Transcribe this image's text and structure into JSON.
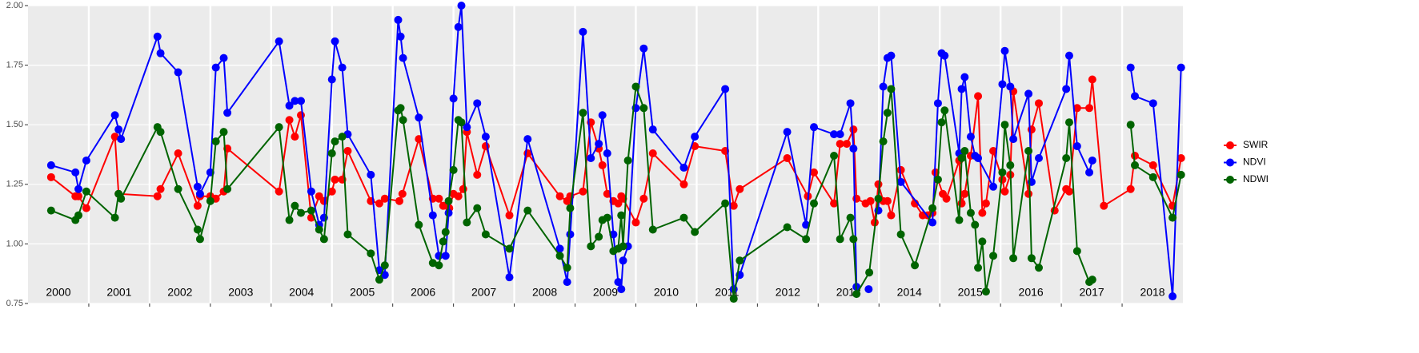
{
  "chart_data": {
    "type": "line",
    "xlim": [
      2000,
      2019
    ],
    "xticks": [
      2001,
      2002,
      2003,
      2004,
      2005,
      2006,
      2007,
      2008,
      2009,
      2010,
      2011,
      2012,
      2013,
      2014,
      2015,
      2016,
      2017,
      2018
    ],
    "year_labels": [
      "2000",
      "2001",
      "2002",
      "2003",
      "2004",
      "2005",
      "2006",
      "2007",
      "2008",
      "2009",
      "2010",
      "2011",
      "2012",
      "2013",
      "2014",
      "2015",
      "2016",
      "2017",
      "2018"
    ],
    "ylim": [
      0.75,
      2.0
    ],
    "yticks": [
      0.75,
      {
        "value": 1.0,
        "label": "1.00"
      },
      1.25,
      {
        "value": 1.5,
        "label": "1.50"
      },
      1.75,
      {
        "value": 2.0,
        "label": "2.00"
      }
    ],
    "grid": true,
    "legend": "right",
    "series": [
      {
        "name": "SWIR",
        "color": "#ff0000",
        "x": [
          2000.38,
          2000.78,
          2000.83,
          2000.96,
          2001.43,
          2001.49,
          2002.13,
          2002.18,
          2002.47,
          2002.79,
          2002.83,
          2003.0,
          2003.09,
          2003.22,
          2003.28,
          2004.13,
          2004.3,
          2004.39,
          2004.49,
          2004.66,
          2004.79,
          2004.87,
          2005.0,
          2005.05,
          2005.17,
          2005.26,
          2005.64,
          2005.78,
          2005.87,
          2006.11,
          2006.16,
          2006.43,
          2006.66,
          2006.76,
          2006.83,
          2006.93,
          2007.0,
          2007.08,
          2007.16,
          2007.22,
          2007.39,
          2007.53,
          2007.92,
          2008.22,
          2008.75,
          2008.87,
          2008.92,
          2009.13,
          2009.26,
          2009.39,
          2009.45,
          2009.53,
          2009.63,
          2009.71,
          2009.76,
          2009.79,
          2010.0,
          2010.13,
          2010.28,
          2010.79,
          2010.97,
          2011.47,
          2011.61,
          2011.71,
          2012.49,
          2012.83,
          2012.93,
          2013.26,
          2013.36,
          2013.47,
          2013.58,
          2013.63,
          2013.78,
          2013.86,
          2013.93,
          2013.99,
          2014.07,
          2014.14,
          2014.2,
          2014.36,
          2014.59,
          2014.72,
          2014.8,
          2014.88,
          2014.93,
          2015.05,
          2015.11,
          2015.32,
          2015.36,
          2015.41,
          2015.51,
          2015.63,
          2015.7,
          2015.76,
          2015.88,
          2016.03,
          2016.07,
          2016.16,
          2016.21,
          2016.46,
          2016.51,
          2016.63,
          2016.89,
          2017.08,
          2017.13,
          2017.26,
          2017.46,
          2017.51,
          2017.7,
          2018.14,
          2018.21,
          2018.51,
          2018.83,
          2018.97
        ],
        "values": [
          1.28,
          1.2,
          1.2,
          1.15,
          1.45,
          1.21,
          1.2,
          1.23,
          1.38,
          1.16,
          1.2,
          1.2,
          1.19,
          1.22,
          1.4,
          1.22,
          1.52,
          1.45,
          1.54,
          1.11,
          1.2,
          1.18,
          1.22,
          1.27,
          1.27,
          1.39,
          1.18,
          1.17,
          1.19,
          1.18,
          1.21,
          1.44,
          1.19,
          1.19,
          1.16,
          1.15,
          1.21,
          1.2,
          1.23,
          1.47,
          1.29,
          1.41,
          1.12,
          1.38,
          1.2,
          1.18,
          1.2,
          1.22,
          1.51,
          1.4,
          1.33,
          1.21,
          1.18,
          1.17,
          1.2,
          1.19,
          1.09,
          1.19,
          1.38,
          1.25,
          1.41,
          1.39,
          1.16,
          1.23,
          1.36,
          1.2,
          1.3,
          1.17,
          1.42,
          1.42,
          1.48,
          1.19,
          1.17,
          1.18,
          1.09,
          1.25,
          1.18,
          1.18,
          1.12,
          1.31,
          1.17,
          1.12,
          1.12,
          1.13,
          1.3,
          1.21,
          1.19,
          1.35,
          1.17,
          1.21,
          1.37,
          1.62,
          1.13,
          1.17,
          1.39,
          1.27,
          1.22,
          1.29,
          1.64,
          1.21,
          1.48,
          1.59,
          1.14,
          1.23,
          1.22,
          1.57,
          1.57,
          1.69,
          1.16,
          1.23,
          1.37,
          1.33,
          1.16,
          1.36
        ]
      },
      {
        "name": "NDVI",
        "color": "#0000ff",
        "x": [
          2000.38,
          2000.78,
          2000.83,
          2000.96,
          2001.43,
          2001.49,
          2001.53,
          2002.13,
          2002.18,
          2002.47,
          2002.79,
          2002.83,
          2003.0,
          2003.09,
          2003.22,
          2003.28,
          2004.13,
          2004.3,
          2004.39,
          2004.49,
          2004.66,
          2004.79,
          2004.87,
          2005.0,
          2005.05,
          2005.17,
          2005.26,
          2005.64,
          2005.78,
          2005.87,
          2006.09,
          2006.13,
          2006.17,
          2006.43,
          2006.66,
          2006.76,
          2006.87,
          2006.92,
          2007.0,
          2007.08,
          2007.13,
          2007.22,
          2007.39,
          2007.53,
          2007.92,
          2008.22,
          2008.75,
          2008.87,
          2008.92,
          2009.13,
          2009.26,
          2009.39,
          2009.45,
          2009.53,
          2009.63,
          2009.71,
          2009.76,
          2009.79,
          2009.87,
          2010.0,
          2010.13,
          2010.28,
          2010.79,
          2010.97,
          2011.47,
          2011.61,
          2011.71,
          2012.49,
          2012.8,
          2012.93,
          2013.26,
          2013.36,
          2013.53,
          2013.58,
          2013.63,
          null,
          2013.83,
          null,
          2013.99,
          2014.07,
          2014.14,
          2014.2,
          2014.36,
          2014.88,
          2014.97,
          2015.03,
          2015.08,
          2015.32,
          2015.36,
          2015.41,
          2015.51,
          2015.58,
          2015.63,
          2015.88,
          2016.03,
          2016.07,
          2016.16,
          2016.21,
          2016.46,
          2016.51,
          2016.63,
          2017.08,
          2017.13,
          2017.26,
          2017.46,
          2017.51,
          null,
          2018.14,
          2018.21,
          2018.51,
          2018.83,
          2018.97
        ],
        "values": [
          1.33,
          1.3,
          1.23,
          1.35,
          1.54,
          1.48,
          1.44,
          1.87,
          1.8,
          1.72,
          1.24,
          1.21,
          1.3,
          1.74,
          1.78,
          1.55,
          1.85,
          1.58,
          1.6,
          1.6,
          1.22,
          1.08,
          1.11,
          1.69,
          1.85,
          1.74,
          1.46,
          1.29,
          0.89,
          0.87,
          1.94,
          1.87,
          1.78,
          1.53,
          1.12,
          0.95,
          0.95,
          1.13,
          1.61,
          1.91,
          2.0,
          1.49,
          1.59,
          1.45,
          0.86,
          1.44,
          0.98,
          0.84,
          1.04,
          1.89,
          1.36,
          1.42,
          1.54,
          1.38,
          1.04,
          0.84,
          0.81,
          0.93,
          0.99,
          1.57,
          1.82,
          1.48,
          1.32,
          1.45,
          1.65,
          0.81,
          0.87,
          1.47,
          1.08,
          1.49,
          1.46,
          1.46,
          1.59,
          1.4,
          0.82,
          null,
          0.81,
          null,
          1.14,
          1.66,
          1.78,
          1.79,
          1.26,
          1.09,
          1.59,
          1.8,
          1.79,
          1.38,
          1.65,
          1.7,
          1.45,
          1.37,
          1.36,
          1.24,
          1.67,
          1.81,
          1.66,
          1.44,
          1.63,
          1.26,
          1.36,
          1.65,
          1.79,
          1.41,
          1.3,
          1.35,
          null,
          1.74,
          1.62,
          1.59,
          0.78,
          1.74
        ]
      },
      {
        "name": "NDWI",
        "color": "#006400",
        "x": [
          2000.38,
          2000.78,
          2000.83,
          2000.96,
          2001.43,
          2001.49,
          2001.53,
          2002.13,
          2002.18,
          2002.47,
          2002.79,
          2002.83,
          2003.0,
          2003.09,
          2003.22,
          2003.28,
          2004.13,
          2004.3,
          2004.39,
          2004.49,
          2004.66,
          2004.79,
          2004.87,
          2005.0,
          2005.05,
          2005.17,
          2005.26,
          2005.64,
          2005.78,
          2005.87,
          2006.09,
          2006.13,
          2006.17,
          2006.43,
          2006.66,
          2006.76,
          2006.83,
          2006.87,
          2006.92,
          2007.0,
          2007.08,
          2007.13,
          2007.22,
          2007.39,
          2007.53,
          2007.92,
          2008.22,
          2008.75,
          2008.87,
          2008.92,
          2009.13,
          2009.26,
          2009.39,
          2009.45,
          2009.53,
          2009.63,
          2009.71,
          2009.76,
          2009.79,
          2009.87,
          2010.0,
          2010.13,
          2010.28,
          2010.79,
          2010.97,
          2011.47,
          2011.61,
          2011.71,
          2012.49,
          2012.8,
          2012.93,
          2013.26,
          2013.36,
          2013.53,
          2013.58,
          2013.63,
          2013.84,
          2013.99,
          2014.07,
          2014.14,
          2014.2,
          2014.36,
          2014.59,
          2014.88,
          2014.97,
          2015.03,
          2015.08,
          2015.32,
          2015.36,
          2015.41,
          2015.51,
          2015.58,
          2015.63,
          2015.7,
          2015.76,
          2015.88,
          2016.03,
          2016.07,
          2016.16,
          2016.21,
          2016.46,
          2016.51,
          2016.63,
          2017.08,
          2017.13,
          2017.26,
          2017.46,
          2017.51,
          null,
          2018.14,
          2018.21,
          2018.51,
          2018.83,
          2018.97
        ],
        "values": [
          1.14,
          1.1,
          1.12,
          1.22,
          1.11,
          1.21,
          1.19,
          1.49,
          1.47,
          1.23,
          1.06,
          1.02,
          1.18,
          1.43,
          1.47,
          1.23,
          1.49,
          1.1,
          1.16,
          1.13,
          1.14,
          1.06,
          1.02,
          1.38,
          1.43,
          1.45,
          1.04,
          0.96,
          0.85,
          0.91,
          1.56,
          1.57,
          1.52,
          1.08,
          0.92,
          0.91,
          1.01,
          1.05,
          1.18,
          1.31,
          1.52,
          1.51,
          1.09,
          1.15,
          1.04,
          0.98,
          1.14,
          0.95,
          0.9,
          1.15,
          1.55,
          0.99,
          1.03,
          1.1,
          1.11,
          0.97,
          0.98,
          1.12,
          0.99,
          1.35,
          1.66,
          1.57,
          1.06,
          1.11,
          1.05,
          1.17,
          0.77,
          0.93,
          1.07,
          1.02,
          1.17,
          1.37,
          1.02,
          1.11,
          1.02,
          0.79,
          0.88,
          1.19,
          1.43,
          1.55,
          1.65,
          1.04,
          0.91,
          1.15,
          1.27,
          1.51,
          1.56,
          1.1,
          1.36,
          1.39,
          1.13,
          1.08,
          0.9,
          1.01,
          0.8,
          0.95,
          1.3,
          1.5,
          1.33,
          0.94,
          1.39,
          0.94,
          0.9,
          1.36,
          1.51,
          0.97,
          0.84,
          0.85,
          null,
          1.5,
          1.33,
          1.28,
          1.11,
          1.29
        ]
      }
    ]
  }
}
